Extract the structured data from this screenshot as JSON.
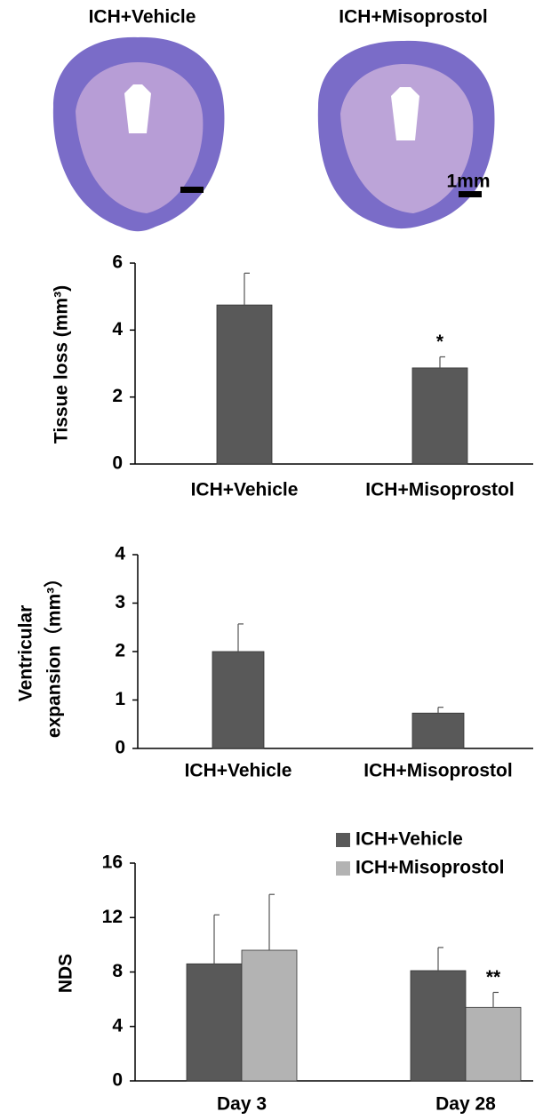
{
  "panel_a": {
    "labels": [
      "ICH+Vehicle",
      "ICH+Misoprostol"
    ],
    "scale_bar": "1mm"
  },
  "chart_data": [
    {
      "type": "bar",
      "ylabel": "Tissue loss (mm³)",
      "categories": [
        "ICH+Vehicle",
        "ICH+Misoprostol"
      ],
      "values": [
        4.75,
        2.87
      ],
      "errors": [
        0.95,
        0.33
      ],
      "annotations": [
        null,
        "*"
      ],
      "color": "#595959",
      "ylim": [
        0,
        6
      ],
      "yticks": [
        0,
        2,
        4,
        6
      ]
    },
    {
      "type": "bar",
      "ylabel": [
        "Ventricular",
        "expansion（mm³）"
      ],
      "categories": [
        "ICH+Vehicle",
        "ICH+Misoprostol"
      ],
      "values": [
        2.0,
        0.73
      ],
      "errors": [
        0.57,
        0.12
      ],
      "color": "#595959",
      "ylim": [
        0,
        4
      ],
      "yticks": [
        0,
        1,
        2,
        3,
        4
      ]
    },
    {
      "type": "grouped_bar",
      "ylabel": "NDS",
      "categories": [
        "Day 3",
        "Day 28"
      ],
      "series": [
        {
          "name": "ICH+Vehicle",
          "color": "#595959",
          "values": [
            8.6,
            8.1
          ],
          "errors": [
            3.6,
            1.7
          ]
        },
        {
          "name": "ICH+Misoprostol",
          "color": "#b3b3b3",
          "values": [
            9.6,
            5.4
          ],
          "errors": [
            4.1,
            1.1
          ],
          "annotations": [
            null,
            "**"
          ]
        }
      ],
      "ylim": [
        0,
        16
      ],
      "yticks": [
        0,
        4,
        8,
        12,
        16
      ],
      "legend": "top-right"
    }
  ]
}
